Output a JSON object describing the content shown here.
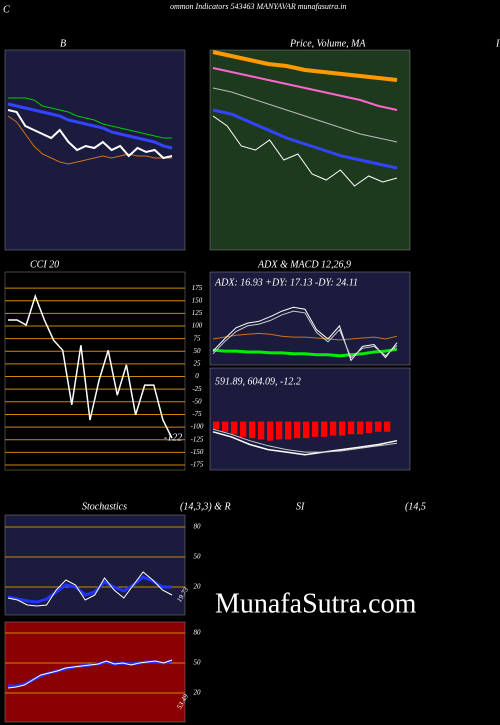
{
  "header": {
    "left": "C",
    "title": "ommon  Indicators 543463 MANYAVAR munafasutra.in",
    "right": "I"
  },
  "labels": [
    "Stochastics",
    "(14,3,3) & R",
    "SI",
    "(14,5"
  ],
  "watermark": "MunafaSutra.com",
  "chart_data": [
    {
      "type": "line",
      "title": "B",
      "background": "#1b1b3d",
      "ylim": [
        0,
        100
      ],
      "series": [
        {
          "color": "#00cc00",
          "line_width": 1,
          "values": [
            76,
            76,
            76,
            75,
            72,
            71,
            70,
            69,
            67,
            66,
            65,
            63,
            62,
            61,
            60,
            59,
            58,
            57,
            56,
            56
          ]
        },
        {
          "color": "#3344ff",
          "line_width": 3,
          "values": [
            73,
            72,
            71,
            70,
            69,
            68,
            67,
            65,
            64,
            63,
            62,
            61,
            59,
            58,
            57,
            56,
            55,
            54,
            52,
            51
          ]
        },
        {
          "color": "#d07020",
          "line_width": 1,
          "values": [
            67,
            64,
            58,
            52,
            48,
            46,
            44,
            43,
            44,
            45,
            46,
            47,
            46,
            47,
            48,
            47,
            47,
            46,
            46,
            46
          ]
        },
        {
          "color": "#ffffff",
          "line_width": 2,
          "values": [
            70,
            69,
            62,
            60,
            58,
            56,
            60,
            54,
            50,
            52,
            51,
            54,
            50,
            52,
            47,
            51,
            49,
            50,
            46,
            47
          ]
        }
      ]
    },
    {
      "type": "line",
      "title": "Price,  Volume,  MA",
      "background": "#1e3a1e",
      "ylim": [
        0,
        100
      ],
      "series": [
        {
          "color": "#ff9900",
          "line_width": 4,
          "values": [
            99,
            97,
            95,
            93,
            92,
            90,
            89,
            88,
            87,
            86,
            85
          ]
        },
        {
          "color": "#ff66cc",
          "line_width": 2,
          "values": [
            91,
            89,
            87,
            85,
            83,
            81,
            79,
            77,
            75,
            72,
            70
          ]
        },
        {
          "color": "#bbbbbb",
          "line_width": 1,
          "values": [
            81,
            79,
            76,
            73,
            70,
            67,
            64,
            61,
            58,
            56,
            54
          ]
        },
        {
          "color": "#3344ff",
          "line_width": 3,
          "values": [
            70,
            68,
            64,
            60,
            56,
            53,
            50,
            47,
            45,
            43,
            41
          ]
        },
        {
          "color": "#ffffff",
          "line_width": 1,
          "values": [
            67,
            62,
            52,
            50,
            55,
            45,
            48,
            38,
            35,
            40,
            32,
            37,
            34,
            36
          ]
        }
      ]
    },
    {
      "type": "line",
      "title": "CCI 20",
      "background": "#000000",
      "grid_color": "#cc8a00",
      "ylim": [
        -185,
        207
      ],
      "yticks": [
        175,
        150,
        125,
        100,
        75,
        50,
        25,
        0,
        -25,
        -50,
        -75,
        -100,
        -125,
        -150,
        -175
      ],
      "series": [
        {
          "color": "#ffffff",
          "line_width": 1.5,
          "values": [
            112,
            112,
            102,
            159,
            112,
            72,
            52,
            -56,
            62,
            -86,
            -7,
            52,
            -37,
            23,
            -76,
            -17,
            -17,
            -86,
            -122
          ]
        }
      ]
    },
    {
      "type": "line",
      "title": "ADX  & MACD 12,26,9",
      "annotation": "ADX: 16.93 +DY: 17.13 -DY: 24.11",
      "background": "#1b1b3d",
      "ylim": [
        0,
        100
      ],
      "series": [
        {
          "color": "#d07020",
          "line_width": 1,
          "values": [
            28,
            30,
            32,
            33,
            34,
            33,
            31,
            30,
            30,
            29,
            28,
            27,
            28,
            29,
            30,
            28,
            31
          ]
        },
        {
          "color": "#00ee00",
          "line_width": 3,
          "values": [
            16,
            15,
            15,
            14,
            14,
            13,
            13,
            12,
            12,
            11,
            11,
            10,
            11,
            12,
            14,
            15,
            17
          ]
        },
        {
          "color": "#ffffff",
          "line_width": 1,
          "values": [
            15,
            28,
            40,
            45,
            47,
            52,
            58,
            62,
            60,
            38,
            28,
            42,
            5,
            20,
            22,
            8,
            24
          ]
        },
        {
          "color": "#cccccc",
          "line_width": 1,
          "values": [
            12,
            25,
            36,
            42,
            44,
            48,
            54,
            58,
            56,
            35,
            25,
            38,
            8,
            18,
            20,
            10,
            21
          ]
        }
      ]
    },
    {
      "type": "line",
      "annotation": "591.89,  604.09,  -12.2",
      "background": "#1b1b3d",
      "ylim": [
        -38,
        42
      ],
      "histogram": {
        "color": "#ff0000",
        "values": [
          -6,
          -8,
          -10,
          -12,
          -13,
          -14,
          -15,
          -14,
          -14,
          -13,
          -13,
          -12,
          -12,
          -11,
          -11,
          -10,
          -10,
          -9,
          -8,
          -8
        ]
      },
      "series": [
        {
          "color": "#ffffff",
          "line_width": 1.5,
          "values": [
            -8,
            -12,
            -18,
            -22,
            -24,
            -26,
            -24,
            -22,
            -20,
            -18,
            -15
          ]
        },
        {
          "color": "#cccccc",
          "line_width": 1,
          "values": [
            -6,
            -10,
            -15,
            -19,
            -22,
            -24,
            -24,
            -23,
            -21,
            -19,
            -17
          ]
        }
      ]
    },
    {
      "type": "line",
      "background": "#1b1b3d",
      "grid_color": "#cc8a00",
      "ylim": [
        -8,
        92
      ],
      "yticks": [
        80,
        50,
        20
      ],
      "value_label": "19.73",
      "series": [
        {
          "color": "#2233ff",
          "line_width": 3,
          "values": [
            10,
            8,
            6,
            5,
            8,
            15,
            22,
            20,
            12,
            15,
            25,
            20,
            16,
            22,
            30,
            26,
            20,
            20
          ]
        },
        {
          "color": "#ffffff",
          "line_width": 1,
          "values": [
            9,
            7,
            2,
            1,
            2,
            17,
            27,
            22,
            7,
            12,
            29,
            17,
            9,
            22,
            35,
            27,
            17,
            12
          ]
        }
      ]
    },
    {
      "type": "line",
      "background": "#8b0000",
      "grid_color": "#cc8a00",
      "ylim": [
        -9,
        91
      ],
      "yticks": [
        80,
        50,
        20
      ],
      "value_label": "53.49",
      "series": [
        {
          "color": "#2233ff",
          "line_width": 3,
          "values": [
            27,
            27,
            29,
            33,
            37,
            40,
            42,
            44,
            46,
            47,
            48,
            49,
            51,
            49,
            50,
            49,
            50,
            51,
            51,
            50,
            52
          ]
        },
        {
          "color": "#ffffff",
          "line_width": 1,
          "values": [
            25,
            26,
            28,
            33,
            38,
            40,
            42,
            45,
            46,
            47,
            48,
            49,
            52,
            49,
            50,
            48,
            50,
            51,
            52,
            50,
            53
          ]
        }
      ]
    }
  ]
}
